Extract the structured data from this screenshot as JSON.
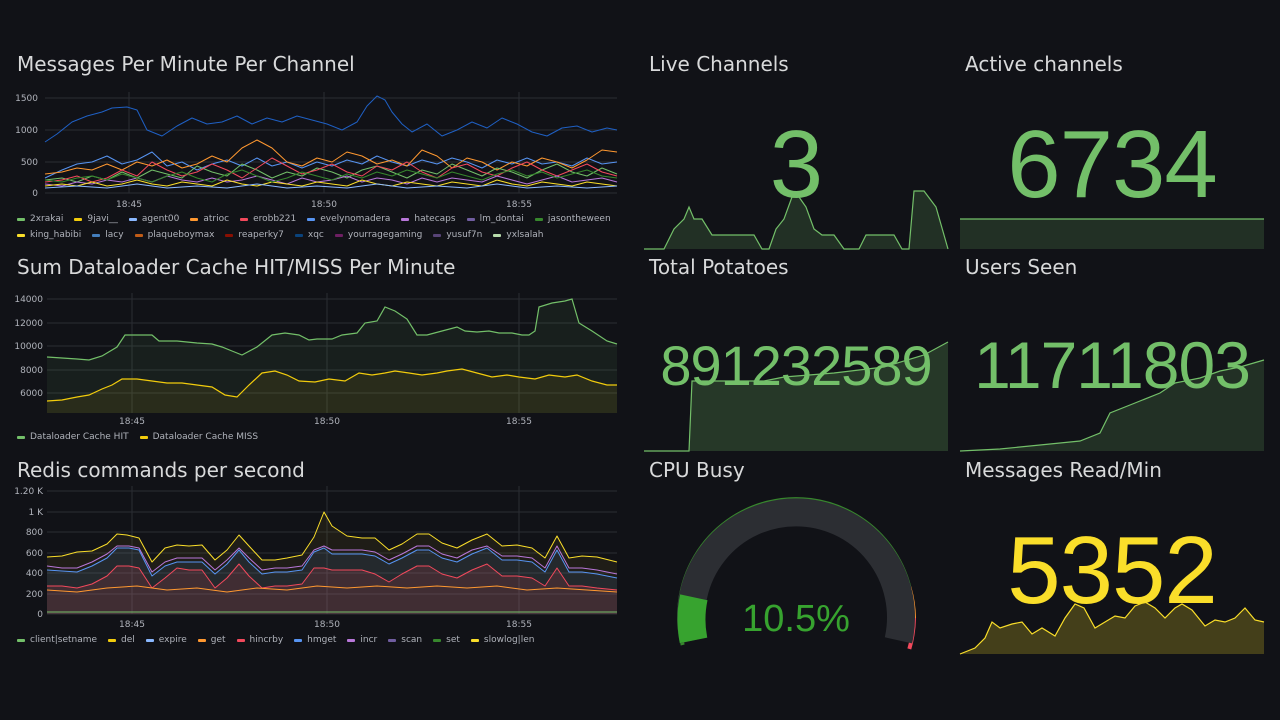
{
  "panels": {
    "messages_per_minute": {
      "title": "Messages Per Minute Per Channel",
      "y_ticks": [
        "1500",
        "1000",
        "500",
        "0"
      ],
      "x_ticks": [
        "18:45",
        "18:50",
        "18:55"
      ],
      "legend": [
        {
          "label": "2xrakai",
          "color": "#73bf69"
        },
        {
          "label": "9javi__",
          "color": "#f2cc0c"
        },
        {
          "label": "agent00",
          "color": "#8ab8ff"
        },
        {
          "label": "atrioc",
          "color": "#ff9830"
        },
        {
          "label": "erobb221",
          "color": "#f2495c"
        },
        {
          "label": "evelynomadera",
          "color": "#5794f2"
        },
        {
          "label": "hatecaps",
          "color": "#b877d9"
        },
        {
          "label": "lm_dontai",
          "color": "#705da0"
        },
        {
          "label": "jasontheween",
          "color": "#37872d"
        },
        {
          "label": "king_habibi",
          "color": "#fade2a"
        },
        {
          "label": "lacy",
          "color": "#447ebc"
        },
        {
          "label": "plaqueboymax",
          "color": "#c15c17"
        },
        {
          "label": "reaperky7",
          "color": "#890f02"
        },
        {
          "label": "xqc",
          "color": "#0a437c"
        },
        {
          "label": "yourragegaming",
          "color": "#6d1f62"
        },
        {
          "label": "yusuf7n",
          "color": "#584477"
        },
        {
          "label": "yxlsalah",
          "color": "#b7dbab"
        }
      ]
    },
    "cache_hit_miss": {
      "title": "Sum Dataloader Cache HIT/MISS Per Minute",
      "y_ticks": [
        "14000",
        "12000",
        "10000",
        "8000",
        "6000"
      ],
      "x_ticks": [
        "18:45",
        "18:50",
        "18:55"
      ],
      "legend": [
        {
          "label": "Dataloader Cache HIT",
          "color": "#73bf69"
        },
        {
          "label": "Dataloader Cache MISS",
          "color": "#f2cc0c"
        }
      ]
    },
    "redis_commands": {
      "title": "Redis commands per second",
      "y_ticks": [
        "1.20 K",
        "1 K",
        "800",
        "600",
        "400",
        "200",
        "0"
      ],
      "x_ticks": [
        "18:45",
        "18:50",
        "18:55"
      ],
      "legend": [
        {
          "label": "client|setname",
          "color": "#73bf69"
        },
        {
          "label": "del",
          "color": "#f2cc0c"
        },
        {
          "label": "expire",
          "color": "#8ab8ff"
        },
        {
          "label": "get",
          "color": "#ff9830"
        },
        {
          "label": "hincrby",
          "color": "#f2495c"
        },
        {
          "label": "hmget",
          "color": "#5794f2"
        },
        {
          "label": "incr",
          "color": "#b877d9"
        },
        {
          "label": "scan",
          "color": "#705da0"
        },
        {
          "label": "set",
          "color": "#37872d"
        },
        {
          "label": "slowlog|len",
          "color": "#fade2a"
        }
      ]
    },
    "live_channels": {
      "title": "Live Channels",
      "value": "3"
    },
    "active_channels": {
      "title": "Active channels",
      "value": "6734"
    },
    "total_potatoes": {
      "title": "Total Potatoes",
      "value": "891232589"
    },
    "users_seen": {
      "title": "Users Seen",
      "value": "11711803"
    },
    "cpu_busy": {
      "title": "CPU Busy",
      "value": "10.5%",
      "percent": 10.5
    },
    "messages_read": {
      "title": "Messages Read/Min",
      "value": "5352"
    }
  },
  "colors": {
    "background": "#111217",
    "green": "#73bf69",
    "yellow": "#fade2a",
    "text": "#d8d9da"
  }
}
